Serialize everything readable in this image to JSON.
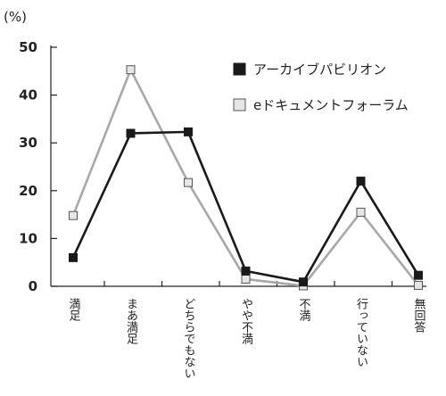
{
  "chart_data": {
    "type": "line",
    "ylabel": "(%)",
    "ylim": [
      0,
      50
    ],
    "yticks": [
      0,
      10,
      20,
      30,
      40,
      50
    ],
    "categories": [
      "満足",
      "まあ満足",
      "どちらでもない",
      "やや不満",
      "不満",
      "行っていない",
      "無回答"
    ],
    "series": [
      {
        "name": "アーカイブパビリオン",
        "values": [
          6,
          32,
          32.3,
          3.2,
          0.9,
          22,
          2.3
        ],
        "color": "#1a1a1a",
        "marker_fill": "#1a1a1a",
        "marker_stroke": "#1a1a1a"
      },
      {
        "name": "eドキュメントフォーラム",
        "values": [
          14.8,
          45.3,
          21.7,
          1.5,
          0.1,
          15.5,
          0.2
        ],
        "color": "#a8a8a8",
        "marker_fill": "#e6e6e6",
        "marker_stroke": "#555555"
      }
    ],
    "grid": false,
    "legend_position": "top-right"
  }
}
